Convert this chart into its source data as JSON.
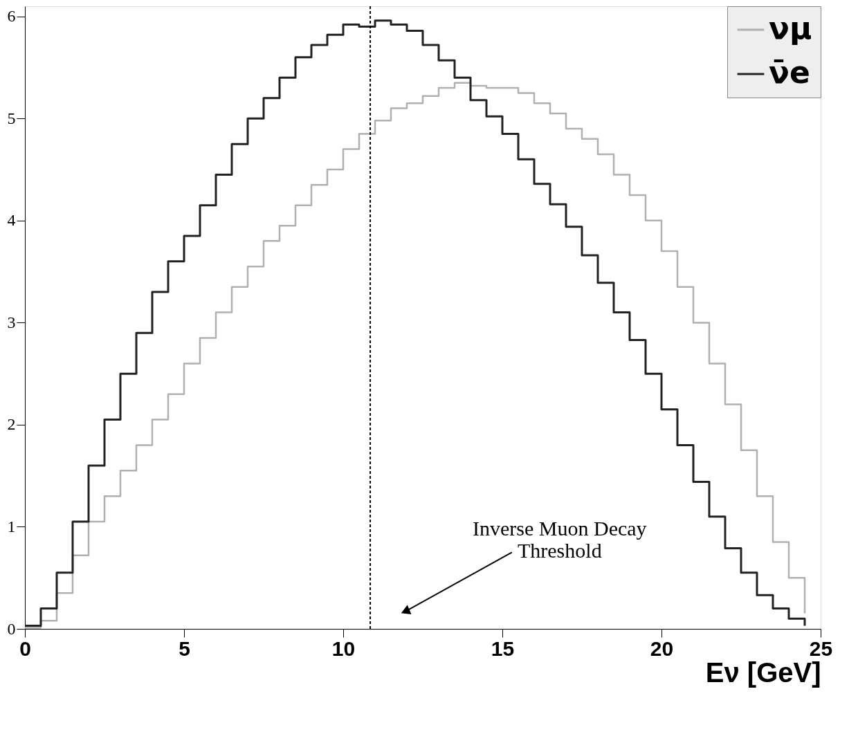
{
  "chart_data": {
    "type": "step",
    "xlabel": "Eν [GeV]",
    "x": [
      0,
      0.5,
      1,
      1.5,
      2,
      2.5,
      3,
      3.5,
      4,
      4.5,
      5,
      5.5,
      6,
      6.5,
      7,
      7.5,
      8,
      8.5,
      9,
      9.5,
      10,
      10.5,
      11,
      11.5,
      12,
      12.5,
      13,
      13.5,
      14,
      14.5,
      15,
      15.5,
      16,
      16.5,
      17,
      17.5,
      18,
      18.5,
      19,
      19.5,
      20,
      20.5,
      21,
      21.5,
      22,
      22.5,
      23,
      23.5,
      24,
      24.5
    ],
    "series": [
      {
        "name": "νμ",
        "color": "#b0b0b0",
        "values": [
          0.01,
          0.08,
          0.35,
          0.72,
          1.05,
          1.3,
          1.55,
          1.8,
          2.05,
          2.3,
          2.6,
          2.85,
          3.1,
          3.35,
          3.55,
          3.8,
          3.95,
          4.15,
          4.35,
          4.5,
          4.7,
          4.85,
          4.98,
          5.1,
          5.15,
          5.22,
          5.3,
          5.35,
          5.32,
          5.3,
          5.3,
          5.25,
          5.15,
          5.05,
          4.9,
          4.8,
          4.65,
          4.45,
          4.25,
          4.0,
          3.7,
          3.35,
          3.0,
          2.6,
          2.2,
          1.75,
          1.3,
          0.85,
          0.5,
          0.15
        ]
      },
      {
        "name": "ν̄e",
        "color": "#222222",
        "values": [
          0.03,
          0.2,
          0.55,
          1.05,
          1.6,
          2.05,
          2.5,
          2.9,
          3.3,
          3.6,
          3.85,
          4.15,
          4.45,
          4.75,
          5.0,
          5.2,
          5.4,
          5.6,
          5.72,
          5.82,
          5.92,
          5.9,
          5.96,
          5.92,
          5.86,
          5.72,
          5.57,
          5.4,
          5.18,
          5.02,
          4.85,
          4.6,
          4.36,
          4.16,
          3.94,
          3.66,
          3.39,
          3.1,
          2.83,
          2.5,
          2.15,
          1.8,
          1.44,
          1.1,
          0.79,
          0.55,
          0.33,
          0.2,
          0.1,
          0.03
        ]
      }
    ],
    "xlim": [
      0,
      25
    ],
    "xticks": [
      0,
      5,
      10,
      15,
      20,
      25
    ],
    "ylim": [
      0,
      6.1
    ],
    "yticks": [
      0,
      1,
      2,
      3,
      4,
      5,
      6
    ],
    "ref_lines": [
      {
        "axis": "x",
        "value": 10.85,
        "line_style": "dashed",
        "color": "#000000"
      }
    ],
    "annotations": [
      "Inverse Muon Decay\nThreshold"
    ],
    "legend": "top right",
    "grid": false
  }
}
